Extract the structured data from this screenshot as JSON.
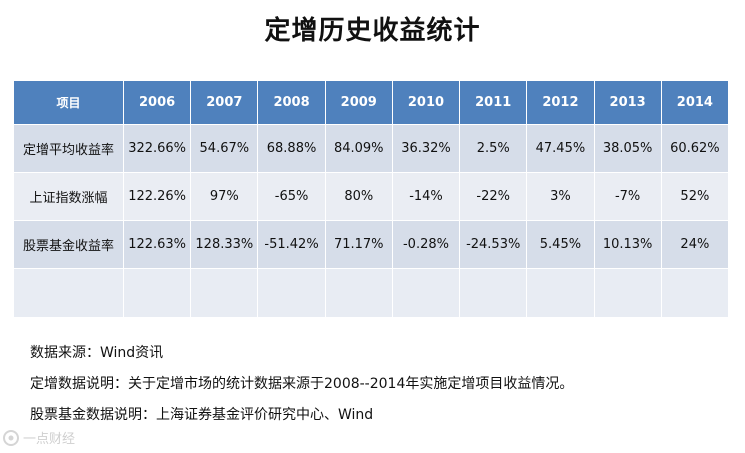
{
  "title": "定增历史收益统计",
  "table": {
    "header_label": "项目",
    "years": [
      "2006",
      "2007",
      "2008",
      "2009",
      "2010",
      "2011",
      "2012",
      "2013",
      "2014"
    ],
    "rows": [
      {
        "label": "定增平均收益率",
        "values": [
          "322.66%",
          "54.67%",
          "68.88%",
          "84.09%",
          "36.32%",
          "2.5%",
          "47.45%",
          "38.05%",
          "60.62%"
        ]
      },
      {
        "label": "上证指数涨幅",
        "values": [
          "122.26%",
          "97%",
          "-65%",
          "80%",
          "-14%",
          "-22%",
          "3%",
          "-7%",
          "52%"
        ]
      },
      {
        "label": "股票基金收益率",
        "values": [
          "122.63%",
          "128.33%",
          "-51.42%",
          "71.17%",
          "-0.28%",
          "-24.53%",
          "5.45%",
          "10.13%",
          "24%"
        ]
      },
      {
        "label": "",
        "values": [
          "",
          "",
          "",
          "",
          "",
          "",
          "",
          "",
          ""
        ]
      }
    ]
  },
  "notes": [
    "数据来源：Wind资讯",
    "定增数据说明：关于定增市场的统计数据来源于2008--2014年实施定增项目收益情况。",
    "股票基金数据说明：上海证券基金评价研究中心、Wind"
  ],
  "watermark": {
    "text": "一点财经",
    "color": "#cfcfcf"
  },
  "colors": {
    "header_bg": "#4f81bd",
    "row_dark": "#d6dde9",
    "row_light": "#eaedf3"
  }
}
